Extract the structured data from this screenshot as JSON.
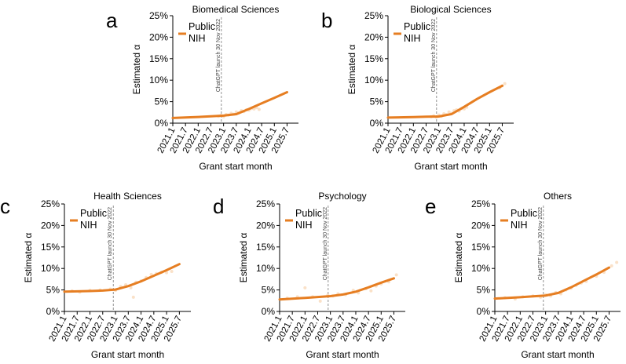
{
  "chart_data": [
    {
      "letter": "a",
      "type": "line",
      "title": "Biomedical Sciences",
      "xlabel": "Grant start month",
      "ylabel": "Estimated α",
      "x_ticks": [
        "2021.1",
        "2021.7",
        "2022.1",
        "2022.7",
        "2023.1",
        "2023.7",
        "2024.1",
        "2024.7",
        "2025.1",
        "2025.7"
      ],
      "y_ticks": [
        "0%",
        "5%",
        "10%",
        "15%",
        "20%",
        "25%"
      ],
      "ylim": [
        0,
        25
      ],
      "legend": [
        "Public",
        "NIH"
      ],
      "legend_placement": "top-left",
      "annotation": "ChatGPT launch 30 Nov 2022",
      "series": [
        {
          "x": [
            "2021.1",
            "2022.1",
            "2022.7",
            "2023.1",
            "2023.7",
            "2024.1",
            "2024.7",
            "2025.1",
            "2025.7"
          ],
          "values": [
            1.2,
            1.45,
            1.6,
            1.75,
            2.1,
            3.3,
            4.6,
            5.9,
            7.2
          ]
        }
      ],
      "scatter": {
        "x": [
          2022.8,
          2022.9,
          2023.0,
          2023.1,
          2023.2,
          2023.3,
          2023.4,
          2023.5,
          2023.6,
          2023.7,
          2023.8,
          2023.9,
          2024.0,
          2024.1,
          2024.2,
          2024.3,
          2024.4
        ],
        "values": [
          1.6,
          1.8,
          1.5,
          2.0,
          1.9,
          2.3,
          2.1,
          2.6,
          2.4,
          2.9,
          2.7,
          3.1,
          3.0,
          3.4,
          3.3,
          3.6,
          3.2
        ]
      }
    },
    {
      "letter": "b",
      "type": "line",
      "title": "Biological Sciences",
      "xlabel": "Grant start month",
      "ylabel": "Estimated α",
      "x_ticks": [
        "2021.1",
        "2021.7",
        "2022.1",
        "2022.7",
        "2023.1",
        "2023.7",
        "2024.1",
        "2024.7",
        "2025.1",
        "2025.7"
      ],
      "y_ticks": [
        "0%",
        "5%",
        "10%",
        "15%",
        "20%",
        "25%"
      ],
      "ylim": [
        0,
        25
      ],
      "legend": [
        "Public",
        "NIH"
      ],
      "legend_placement": "top-left",
      "annotation": "ChatGPT launch 30 Nov 2022",
      "series": [
        {
          "x": [
            "2021.1",
            "2022.1",
            "2022.7",
            "2023.1",
            "2023.7",
            "2024.1",
            "2024.7",
            "2025.1",
            "2025.7"
          ],
          "values": [
            1.3,
            1.4,
            1.5,
            1.55,
            2.1,
            3.8,
            5.6,
            7.2,
            8.7
          ]
        }
      ],
      "scatter": {
        "x": [
          2022.7,
          2022.8,
          2022.9,
          2023.0,
          2023.1,
          2023.2,
          2023.3,
          2023.4,
          2023.5,
          2023.6,
          2023.7,
          2023.8,
          2023.9,
          2024.0,
          2024.1,
          2025.4,
          2025.5,
          2025.6
        ],
        "values": [
          1.5,
          1.7,
          1.4,
          1.9,
          1.6,
          2.2,
          2.0,
          2.6,
          2.3,
          2.9,
          3.1,
          2.8,
          3.4,
          3.3,
          3.7,
          8.2,
          8.7,
          9.2
        ]
      }
    },
    {
      "letter": "c",
      "type": "line",
      "title": "Health Sciences",
      "xlabel": "Grant start month",
      "ylabel": "Estimated α",
      "x_ticks": [
        "2021.1",
        "2021.7",
        "2022.1",
        "2022.7",
        "2023.1",
        "2023.7",
        "2024.1",
        "2024.7",
        "2025.1",
        "2025.7"
      ],
      "y_ticks": [
        "0%",
        "5%",
        "10%",
        "15%",
        "20%",
        "25%"
      ],
      "ylim": [
        0,
        25
      ],
      "legend": [
        "Public",
        "NIH"
      ],
      "legend_placement": "top-left",
      "annotation": "ChatGPT launch 30 Nov 2022",
      "series": [
        {
          "x": [
            "2021.1",
            "2022.1",
            "2022.7",
            "2023.1",
            "2023.7",
            "2024.1",
            "2024.7",
            "2025.1",
            "2025.7"
          ],
          "values": [
            4.6,
            4.75,
            4.85,
            5.1,
            5.9,
            7.0,
            8.3,
            9.6,
            11.0
          ]
        }
      ],
      "scatter": {
        "x": [
          2021.3,
          2021.6,
          2022.0,
          2022.4,
          2022.8,
          2023.0,
          2023.2,
          2023.4,
          2023.6,
          2023.7,
          2023.8,
          2024.0,
          2024.2,
          2024.4,
          2024.6,
          2024.8,
          2025.0,
          2025.2
        ],
        "values": [
          4.8,
          4.5,
          4.9,
          5.0,
          5.2,
          4.9,
          5.8,
          6.2,
          5.5,
          3.3,
          6.8,
          7.1,
          7.9,
          8.6,
          8.8,
          9.1,
          9.0,
          9.3
        ]
      }
    },
    {
      "letter": "d",
      "type": "line",
      "title": "Psychology",
      "xlabel": "Grant start month",
      "ylabel": "Estimated α",
      "x_ticks": [
        "2021.1",
        "2021.7",
        "2022.1",
        "2022.7",
        "2023.1",
        "2023.7",
        "2024.1",
        "2024.7",
        "2025.1",
        "2025.7"
      ],
      "y_ticks": [
        "0%",
        "5%",
        "10%",
        "15%",
        "20%",
        "25%"
      ],
      "ylim": [
        0,
        25
      ],
      "legend": [
        "Public",
        "NIH"
      ],
      "legend_placement": "top-left",
      "annotation": "ChatGPT launch 30 Nov 2022",
      "series": [
        {
          "x": [
            "2021.1",
            "2022.1",
            "2022.7",
            "2023.1",
            "2023.7",
            "2024.1",
            "2024.7",
            "2025.1",
            "2025.7"
          ],
          "values": [
            2.8,
            3.15,
            3.35,
            3.55,
            3.95,
            4.6,
            5.6,
            6.7,
            7.7
          ]
        }
      ],
      "scatter": {
        "x": [
          2021.3,
          2021.7,
          2022.0,
          2022.3,
          2022.6,
          2022.9,
          2023.1,
          2023.3,
          2023.6,
          2023.9,
          2024.1,
          2024.4,
          2024.6,
          2024.8,
          2025.0,
          2025.3,
          2025.6
        ],
        "values": [
          3.1,
          3.4,
          5.5,
          3.4,
          2.4,
          3.8,
          3.6,
          4.1,
          3.9,
          4.9,
          4.3,
          5.3,
          4.8,
          5.9,
          6.4,
          6.9,
          8.5
        ]
      }
    },
    {
      "letter": "e",
      "type": "line",
      "title": "Others",
      "xlabel": "Grant start month",
      "ylabel": "Estimated α",
      "x_ticks": [
        "2021.1",
        "2021.7",
        "2022.1",
        "2022.7",
        "2023.1",
        "2023.7",
        "2024.1",
        "2024.7",
        "2025.1",
        "2025.7"
      ],
      "y_ticks": [
        "0%",
        "5%",
        "10%",
        "15%",
        "20%",
        "25%"
      ],
      "ylim": [
        0,
        25
      ],
      "legend": [
        "Public",
        "NIH"
      ],
      "legend_placement": "top-left",
      "annotation": "ChatGPT launch 30 Nov 2022",
      "series": [
        {
          "x": [
            "2021.1",
            "2022.1",
            "2022.7",
            "2023.1",
            "2023.7",
            "2024.1",
            "2024.7",
            "2025.1",
            "2025.7"
          ],
          "values": [
            3.0,
            3.3,
            3.5,
            3.7,
            4.3,
            5.6,
            7.1,
            8.6,
            10.2
          ]
        }
      ],
      "scatter": {
        "x": [
          2021.4,
          2021.8,
          2022.1,
          2022.5,
          2022.8,
          2023.0,
          2023.2,
          2023.4,
          2023.6,
          2023.8,
          2024.0,
          2024.2,
          2024.4,
          2024.6,
          2025.0,
          2025.3,
          2025.6,
          2025.8
        ],
        "values": [
          3.2,
          2.9,
          3.4,
          3.6,
          3.3,
          3.9,
          3.6,
          4.4,
          4.1,
          5.0,
          5.4,
          6.1,
          6.6,
          7.0,
          8.2,
          9.1,
          10.6,
          11.4
        ]
      }
    }
  ]
}
